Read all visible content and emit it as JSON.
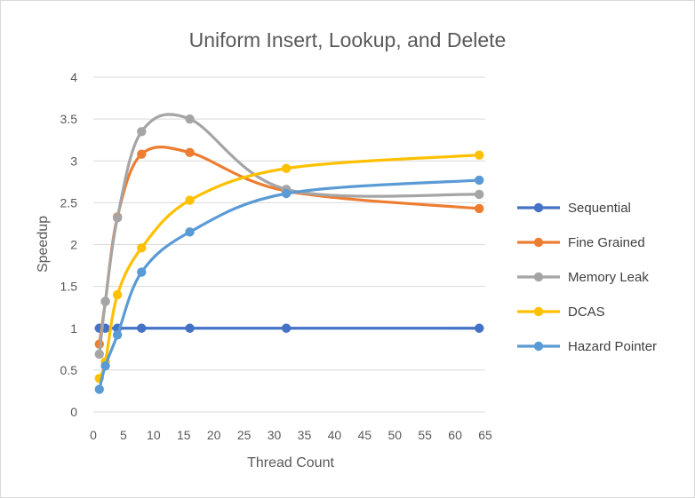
{
  "chart_data": {
    "type": "line",
    "smooth": true,
    "title": "Uniform Insert, Lookup, and Delete",
    "xlabel": "Thread Count",
    "ylabel": "Speedup",
    "xlim": [
      0,
      65
    ],
    "ylim": [
      0,
      4
    ],
    "xticks": [
      0,
      5,
      10,
      15,
      20,
      25,
      30,
      35,
      40,
      45,
      50,
      55,
      60,
      65
    ],
    "yticks": [
      0,
      0.5,
      1,
      1.5,
      2,
      2.5,
      3,
      3.5,
      4
    ],
    "x_tick_labels": [
      "0",
      "5",
      "10",
      "15",
      "20",
      "25",
      "30",
      "35",
      "40",
      "45",
      "50",
      "55",
      "60",
      "65"
    ],
    "y_tick_labels": [
      "0",
      "0.5",
      "1",
      "1.5",
      "2",
      "2.5",
      "3",
      "3.5",
      "4"
    ],
    "grid": "horizontal",
    "legend": "right",
    "x": [
      1,
      2,
      4,
      8,
      16,
      32,
      64
    ],
    "series": [
      {
        "name": "Sequential",
        "color": "#4472C4",
        "values": [
          1,
          1,
          1,
          1,
          1,
          1,
          1
        ]
      },
      {
        "name": "Fine Grained",
        "color": "#ED7D31",
        "values": [
          0.81,
          1.32,
          2.33,
          3.08,
          3.1,
          2.64,
          2.43
        ]
      },
      {
        "name": "Memory Leak",
        "color": "#A5A5A5",
        "values": [
          0.69,
          1.32,
          2.32,
          3.35,
          3.5,
          2.66,
          2.6
        ]
      },
      {
        "name": "DCAS",
        "color": "#FFC000",
        "values": [
          0.4,
          0.6,
          1.4,
          1.96,
          2.53,
          2.91,
          3.07
        ]
      },
      {
        "name": "Hazard Pointer",
        "color": "#5B9BD5",
        "values": [
          0.27,
          0.55,
          0.92,
          1.67,
          2.15,
          2.61,
          2.77
        ]
      }
    ]
  }
}
